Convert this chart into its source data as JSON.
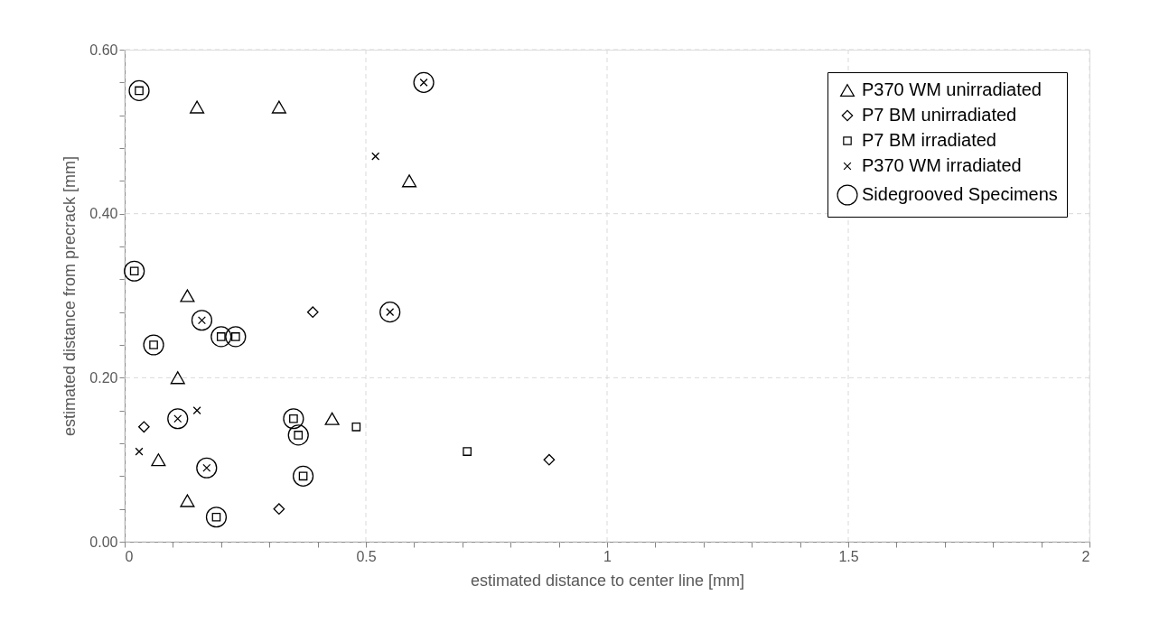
{
  "chart_data": {
    "type": "scatter",
    "xlabel": "estimated distance to center line [mm]",
    "ylabel": "estimated distance from precrack [mm]",
    "xlim": [
      0,
      2
    ],
    "ylim": [
      0,
      0.6
    ],
    "xticks": [
      0,
      {
        "value": 0.1,
        "label": null
      },
      {
        "value": 0.2,
        "label": null
      },
      {
        "value": 0.3,
        "label": null
      },
      {
        "value": 0.4,
        "label": null
      },
      0.5,
      {
        "value": 0.6,
        "label": null
      },
      {
        "value": 0.7,
        "label": null
      },
      {
        "value": 0.8,
        "label": null
      },
      {
        "value": 0.9,
        "label": null
      },
      1,
      {
        "value": 1.1,
        "label": null
      },
      {
        "value": 1.2,
        "label": null
      },
      {
        "value": 1.3,
        "label": null
      },
      {
        "value": 1.4,
        "label": null
      },
      1.5,
      {
        "value": 1.6,
        "label": null
      },
      {
        "value": 1.7,
        "label": null
      },
      {
        "value": 1.8,
        "label": null
      },
      {
        "value": 1.9,
        "label": null
      },
      2
    ],
    "yticks": [
      {
        "value": 0,
        "label": "0.00"
      },
      {
        "value": 0.04,
        "label": null
      },
      {
        "value": 0.08,
        "label": null
      },
      {
        "value": 0.12,
        "label": null
      },
      {
        "value": 0.16,
        "label": null
      },
      {
        "value": 0.2,
        "label": "0.20"
      },
      {
        "value": 0.24,
        "label": null
      },
      {
        "value": 0.28,
        "label": null
      },
      {
        "value": 0.32,
        "label": null
      },
      {
        "value": 0.36,
        "label": null
      },
      {
        "value": 0.4,
        "label": "0.40"
      },
      {
        "value": 0.44,
        "label": null
      },
      {
        "value": 0.48,
        "label": null
      },
      {
        "value": 0.52,
        "label": null
      },
      {
        "value": 0.56,
        "label": null
      },
      {
        "value": 0.6,
        "label": "0.60"
      }
    ],
    "grid": true,
    "legend": "top right",
    "series": [
      {
        "name": "P370 WM unirradiated",
        "color": "#000000",
        "marker": "triangle",
        "x": [
          0.15,
          0.32,
          0.59,
          0.13,
          0.11,
          0.07,
          0.13,
          0.43
        ],
        "values": [
          0.53,
          0.53,
          0.44,
          0.3,
          0.2,
          0.1,
          0.05,
          0.15
        ]
      },
      {
        "name": "P7 BM unirradiated",
        "color": "#000000",
        "marker": "diamond",
        "x": [
          0.39,
          0.04,
          0.32,
          0.88
        ],
        "values": [
          0.28,
          0.14,
          0.04,
          0.1
        ]
      },
      {
        "name": "P7 BM irradiated",
        "color": "#000000",
        "marker": "square",
        "x": [
          0.03,
          0.02,
          0.06,
          0.2,
          0.23,
          0.19,
          0.35,
          0.36,
          0.48,
          0.37,
          0.71
        ],
        "values": [
          0.55,
          0.33,
          0.24,
          0.25,
          0.25,
          0.03,
          0.15,
          0.13,
          0.14,
          0.08,
          0.11
        ]
      },
      {
        "name": "P370 WM irradiated",
        "color": "#000000",
        "marker": "cross",
        "x": [
          0.52,
          0.62,
          0.55,
          0.16,
          0.15,
          0.11,
          0.03,
          0.17
        ],
        "values": [
          0.47,
          0.56,
          0.28,
          0.27,
          0.16,
          0.15,
          0.11,
          0.09
        ]
      },
      {
        "name": "Sidegrooved Specimens",
        "color": "#000000",
        "marker": "circle",
        "x": [
          0.03,
          0.02,
          0.06,
          0.2,
          0.23,
          0.19,
          0.35,
          0.36,
          0.37,
          0.62,
          0.55,
          0.16,
          0.11,
          0.17
        ],
        "values": [
          0.55,
          0.33,
          0.24,
          0.25,
          0.25,
          0.03,
          0.15,
          0.13,
          0.08,
          0.56,
          0.28,
          0.27,
          0.15,
          0.09
        ]
      }
    ]
  }
}
